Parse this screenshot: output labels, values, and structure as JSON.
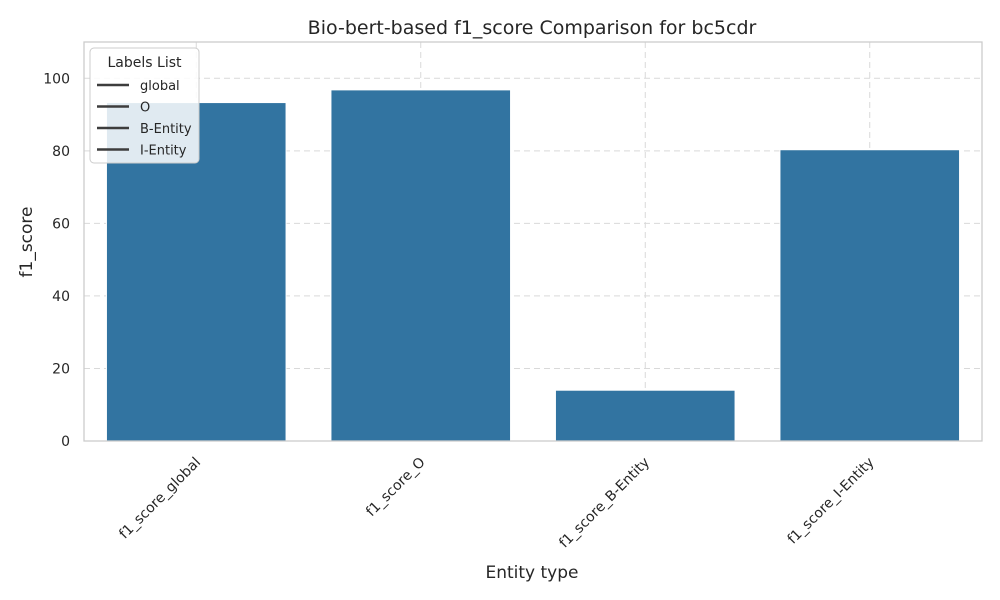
{
  "chart_data": {
    "type": "bar",
    "title": "Bio-bert-based  f1_score Comparison for bc5cdr",
    "xlabel": "Entity type",
    "ylabel": "f1_score",
    "categories": [
      "f1_score_global",
      "f1_score_O",
      "f1_score_B-Entity",
      "f1_score_I-Entity"
    ],
    "values": [
      93.3,
      96.8,
      14.0,
      80.3
    ],
    "ylim": [
      0,
      110
    ],
    "yticks": [
      0,
      20,
      40,
      60,
      80,
      100
    ],
    "grid": true,
    "bar_color": "#3274a1",
    "legend": {
      "title": "Labels List",
      "placement": "top-left",
      "entries": [
        "global",
        "O",
        "B-Entity",
        "I-Entity"
      ],
      "line_color": "#3d3d3d"
    }
  }
}
